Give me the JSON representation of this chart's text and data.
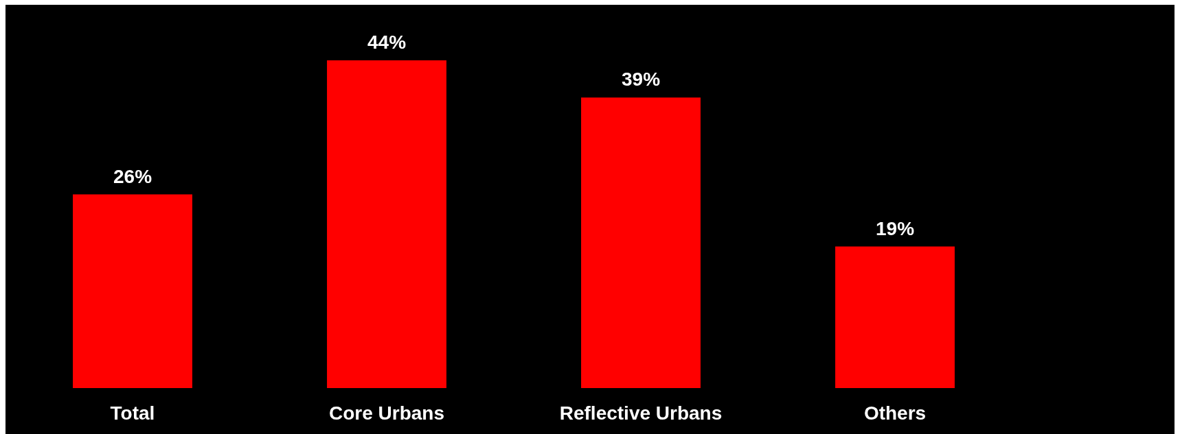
{
  "chart_data": {
    "type": "bar",
    "categories": [
      "Total",
      "Core Urbans",
      "Reflective Urbans",
      "Others"
    ],
    "values": [
      26,
      44,
      39,
      19
    ],
    "color": "#ff0000",
    "value_labels": [
      "26%",
      "44%",
      "39%",
      "19%"
    ]
  }
}
